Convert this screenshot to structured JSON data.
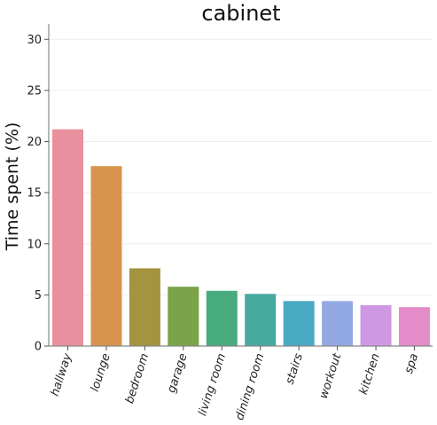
{
  "chart_data": {
    "type": "bar",
    "title": "cabinet",
    "xlabel": "",
    "ylabel": "Time spent (%)",
    "categories": [
      "hallway",
      "lounge",
      "bedroom",
      "garage",
      "living room",
      "dining room",
      "stairs",
      "workout",
      "kitchen",
      "spa"
    ],
    "values": [
      21.2,
      17.6,
      7.6,
      5.8,
      5.4,
      5.1,
      4.4,
      4.4,
      4.0,
      3.8
    ],
    "colors": [
      "#e8909d",
      "#d8944e",
      "#a4933f",
      "#7aa34a",
      "#47ab7e",
      "#48aa9f",
      "#4aaac4",
      "#93a9e4",
      "#cf98e2",
      "#e48bc9"
    ],
    "ylim": [
      0,
      31.5
    ],
    "yticks": [
      "0",
      "5",
      "10",
      "15",
      "20",
      "25",
      "30"
    ],
    "grid": true,
    "legend": "none"
  }
}
